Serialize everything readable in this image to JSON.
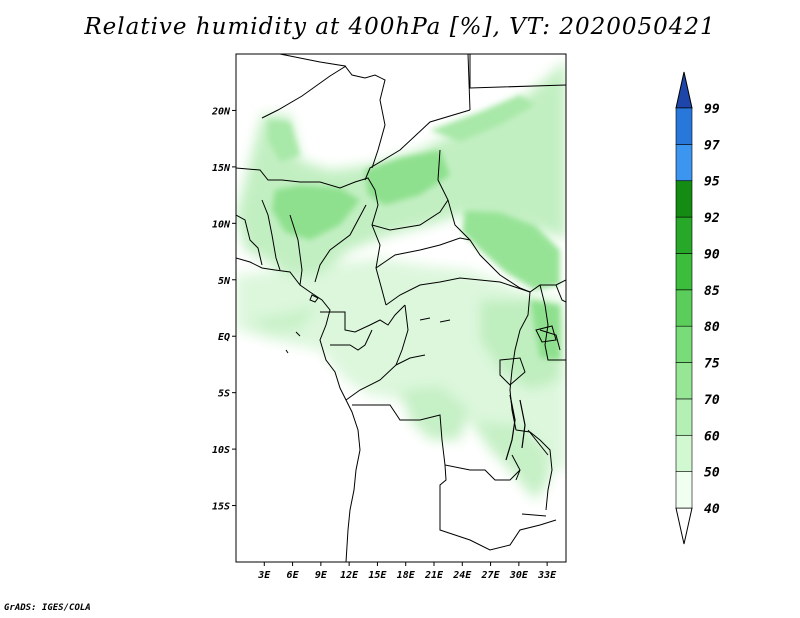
{
  "title": "Relative humidity at 400hPa [%], VT: 2020050421",
  "credit": "GrADS: IGES/COLA",
  "map": {
    "lon_range": [
      0,
      35
    ],
    "lat_range": [
      -20,
      25
    ],
    "x_ticks": [
      {
        "lon": 3,
        "label": "3E"
      },
      {
        "lon": 6,
        "label": "6E"
      },
      {
        "lon": 9,
        "label": "9E"
      },
      {
        "lon": 12,
        "label": "12E"
      },
      {
        "lon": 15,
        "label": "15E"
      },
      {
        "lon": 18,
        "label": "18E"
      },
      {
        "lon": 21,
        "label": "21E"
      },
      {
        "lon": 24,
        "label": "24E"
      },
      {
        "lon": 27,
        "label": "27E"
      },
      {
        "lon": 30,
        "label": "30E"
      },
      {
        "lon": 33,
        "label": "33E"
      }
    ],
    "y_ticks": [
      {
        "lat": 20,
        "label": "20N"
      },
      {
        "lat": 15,
        "label": "15N"
      },
      {
        "lat": 10,
        "label": "10N"
      },
      {
        "lat": 5,
        "label": "5N"
      },
      {
        "lat": 0,
        "label": "EQ"
      },
      {
        "lat": -5,
        "label": "5S"
      },
      {
        "lat": -10,
        "label": "10S"
      },
      {
        "lat": -15,
        "label": "15S"
      }
    ]
  },
  "colorbar": {
    "levels": [
      "40",
      "50",
      "60",
      "70",
      "75",
      "80",
      "85",
      "90",
      "92",
      "95",
      "97",
      "99"
    ],
    "colors": [
      "#f0fff0",
      "#d2f8d2",
      "#b4f0b4",
      "#96e696",
      "#78dc78",
      "#5acd5a",
      "#3cbe3c",
      "#28a828",
      "#148c14",
      "#3c96f0",
      "#2878dc",
      "#1e5fc8",
      "#1e46aa"
    ]
  }
}
